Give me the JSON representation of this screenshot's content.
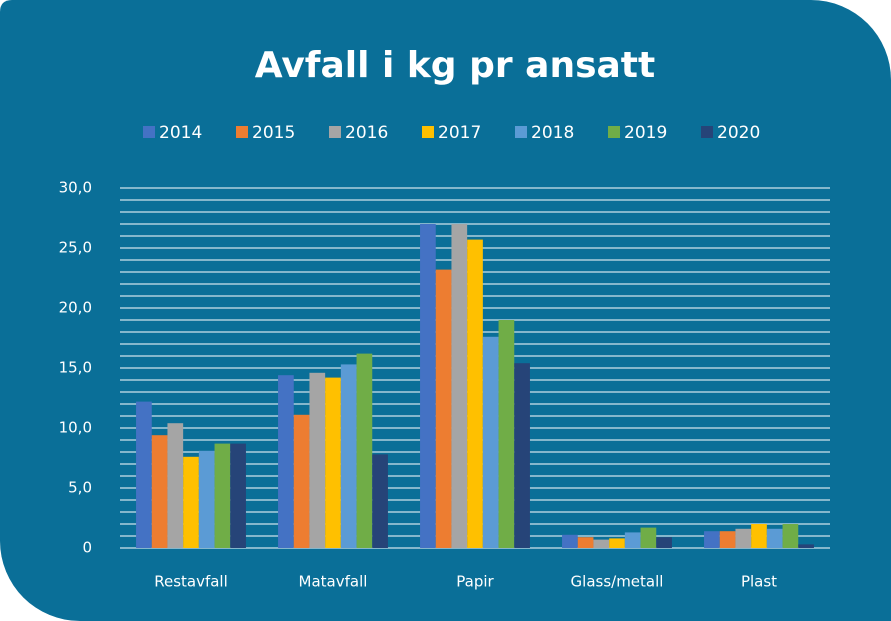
{
  "chart_data": {
    "type": "bar",
    "title": "Avfall i kg pr ansatt",
    "categories": [
      "Restavfall",
      "Matavfall",
      "Papir",
      "Glass/metall",
      "Plast"
    ],
    "series": [
      {
        "name": "2014",
        "color": "#4472c4",
        "values": [
          12.2,
          14.4,
          27.0,
          1.1,
          1.4
        ]
      },
      {
        "name": "2015",
        "color": "#ed7d31",
        "values": [
          9.4,
          11.1,
          23.2,
          0.9,
          1.4
        ]
      },
      {
        "name": "2016",
        "color": "#a5a5a5",
        "values": [
          10.4,
          14.6,
          27.0,
          0.7,
          1.6
        ]
      },
      {
        "name": "2017",
        "color": "#ffc000",
        "values": [
          7.6,
          14.2,
          25.7,
          0.8,
          2.0
        ]
      },
      {
        "name": "2018",
        "color": "#5b9bd5",
        "values": [
          8.1,
          15.3,
          17.6,
          1.3,
          1.6
        ]
      },
      {
        "name": "2019",
        "color": "#70ad47",
        "values": [
          8.7,
          16.2,
          19.0,
          1.7,
          2.0
        ]
      },
      {
        "name": "2020",
        "color": "#264478",
        "values": [
          8.7,
          7.8,
          15.4,
          0.9,
          0.3
        ]
      }
    ],
    "ylim": [
      0,
      30
    ],
    "yticks": [
      0,
      {
        "value": 5,
        "label": "5,0"
      },
      {
        "value": 10,
        "label": "10,0"
      },
      {
        "value": 15,
        "label": "15,0"
      },
      {
        "value": 20,
        "label": "20,0"
      },
      {
        "value": 25,
        "label": "25,0"
      },
      {
        "value": 30,
        "label": "30,0"
      }
    ],
    "yminorticks": [
      1,
      2,
      3,
      4,
      6,
      7,
      8,
      9,
      11,
      12,
      13,
      14,
      16,
      17,
      18,
      19,
      21,
      22,
      23,
      24,
      26,
      27,
      28,
      29
    ],
    "grid": true,
    "legend": "top"
  }
}
